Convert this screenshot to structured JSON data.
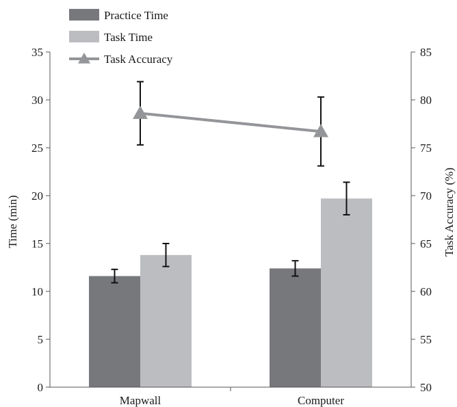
{
  "chart_data": {
    "type": "bar",
    "categories": [
      "Mapwall",
      "Computer"
    ],
    "ylabel": "Time (min)",
    "y2label": "Task Accuracy (%)",
    "ylim": [
      0,
      35
    ],
    "y2lim": [
      50,
      85
    ],
    "yticks": [
      "0",
      "5",
      "10",
      "15",
      "20",
      "25",
      "30",
      "35"
    ],
    "y2ticks": [
      "50",
      "55",
      "60",
      "65",
      "70",
      "75",
      "80",
      "85"
    ],
    "legend_position": "top-left",
    "series": [
      {
        "name": "Practice Time",
        "kind": "bar",
        "axis": "left",
        "color": "#77787c",
        "values": [
          11.6,
          12.4
        ],
        "error_low": [
          10.9,
          11.6
        ],
        "error_high": [
          12.3,
          13.2
        ]
      },
      {
        "name": "Task Time",
        "kind": "bar",
        "axis": "left",
        "color": "#bcbdc0",
        "values": [
          13.8,
          19.7
        ],
        "error_low": [
          12.6,
          18.0
        ],
        "error_high": [
          15.0,
          21.4
        ]
      },
      {
        "name": "Task Accuracy",
        "kind": "line",
        "axis": "right",
        "color": "#939598",
        "marker": "triangle",
        "values": [
          78.6,
          76.7
        ],
        "error_low": [
          75.3,
          73.1
        ],
        "error_high": [
          81.9,
          80.3
        ]
      }
    ]
  }
}
